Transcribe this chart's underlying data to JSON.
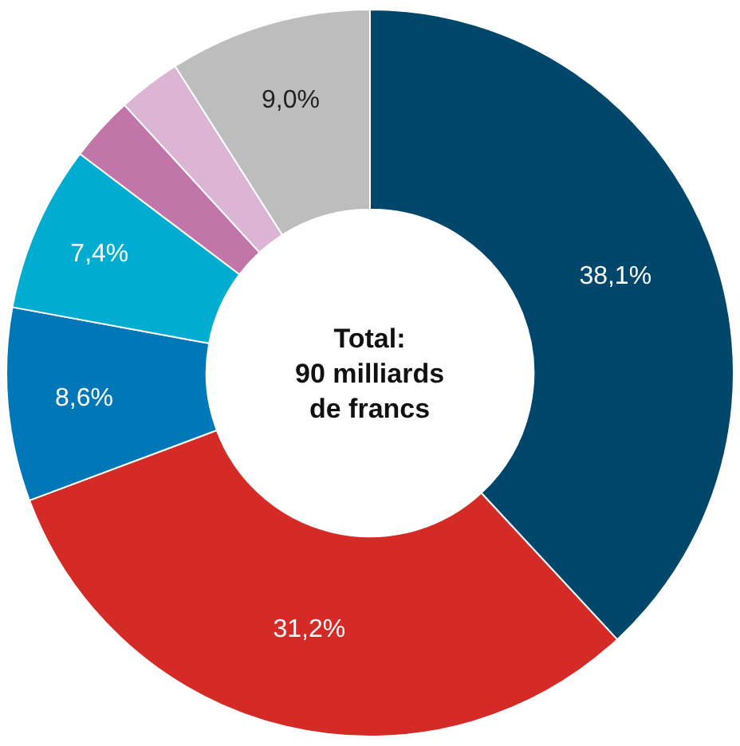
{
  "chart_data": {
    "type": "donut",
    "categories": [
      null,
      null,
      null,
      null,
      null,
      null,
      null
    ],
    "values": [
      38.1,
      31.2,
      8.6,
      7.4,
      2.9,
      2.8,
      9.0
    ],
    "value_labels": [
      "38,1%",
      "31,2%",
      "8,6%",
      "7,4%",
      null,
      null,
      "9,0%"
    ],
    "colors": [
      "#00476b",
      "#d52b27",
      "#0077b6",
      "#00acd0",
      "#c275a8",
      "#dbb5d3",
      "#bdbdbd"
    ],
    "annotations": [
      "Total:\n90 milliards\nde francs"
    ],
    "legend": false
  }
}
